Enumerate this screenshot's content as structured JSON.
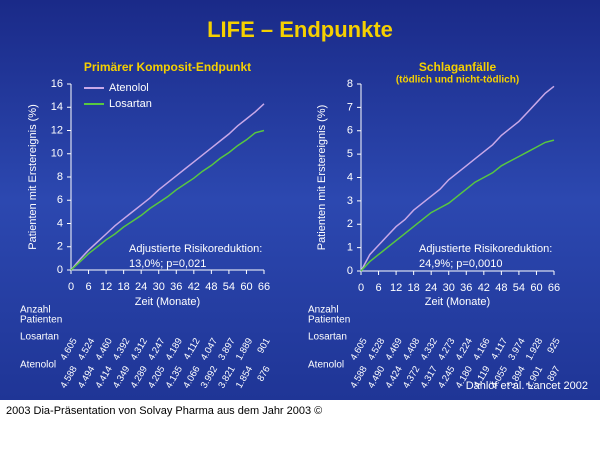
{
  "title": "LIFE – Endpunkte",
  "source": "Dahlöf et al. Lancet 2002",
  "footer": "2003 Dia-Präsentation von Solvay Pharma aus dem Jahr 2003 ©",
  "chart_data": [
    {
      "type": "line",
      "title": "Primärer Komposit-Endpunkt",
      "x_label": "Zeit (Monate)",
      "y_label": "Patienten mit Erstereignis (%)",
      "xlim": [
        0,
        66
      ],
      "xticks": [
        0,
        6,
        12,
        18,
        24,
        30,
        36,
        42,
        48,
        54,
        60,
        66
      ],
      "ylim": [
        0,
        16
      ],
      "yticks": [
        0,
        2,
        4,
        6,
        8,
        10,
        12,
        14,
        16
      ],
      "legend": "upper left",
      "annotation": [
        "Adjustierte Risikoreduktion:",
        "13,0%; p=0,021"
      ],
      "x": [
        0,
        3,
        6,
        9,
        12,
        15,
        18,
        21,
        24,
        27,
        30,
        33,
        36,
        39,
        42,
        45,
        48,
        51,
        54,
        57,
        60,
        63,
        66
      ],
      "series": [
        {
          "name": "Atenolol",
          "color": "#c8a8e8",
          "values": [
            0,
            0.9,
            1.7,
            2.4,
            3.1,
            3.8,
            4.4,
            5.0,
            5.6,
            6.2,
            6.9,
            7.5,
            8.1,
            8.7,
            9.3,
            9.9,
            10.5,
            11.1,
            11.7,
            12.4,
            13.0,
            13.6,
            14.3
          ]
        },
        {
          "name": "Losartan",
          "color": "#58c840",
          "values": [
            0,
            0.7,
            1.4,
            2.0,
            2.6,
            3.1,
            3.7,
            4.2,
            4.7,
            5.3,
            5.8,
            6.3,
            6.9,
            7.4,
            7.9,
            8.5,
            9.0,
            9.6,
            10.1,
            10.7,
            11.2,
            11.8,
            12.0
          ]
        }
      ],
      "at_risk_title": [
        "Anzahl",
        "Patienten"
      ],
      "at_risk": [
        {
          "name": "Losartan",
          "values": [
            "4.605",
            "4.524",
            "4.460",
            "4.392",
            "4.312",
            "4.247",
            "4.189",
            "4.112",
            "4.047",
            "3.897",
            "1.889",
            "901"
          ]
        },
        {
          "name": "Atenolol",
          "values": [
            "4.588",
            "4.494",
            "4.414",
            "4.349",
            "4.289",
            "4.205",
            "4.135",
            "4.066",
            "3.992",
            "3.821",
            "1.854",
            "876"
          ]
        }
      ]
    },
    {
      "type": "line",
      "title": "Schlaganfälle",
      "subtitle": "(tödlich und nicht-tödlich)",
      "x_label": "Zeit (Monate)",
      "y_label": "Patienten mit Erstereignis (%)",
      "xlim": [
        0,
        66
      ],
      "xticks": [
        0,
        6,
        12,
        18,
        24,
        30,
        36,
        42,
        48,
        54,
        60,
        66
      ],
      "ylim": [
        0,
        8
      ],
      "yticks": [
        0,
        1,
        2,
        3,
        4,
        5,
        6,
        7,
        8
      ],
      "annotation": [
        "Adjustierte Risikoreduktion:",
        "24,9%; p=0,0010"
      ],
      "x": [
        0,
        3,
        6,
        9,
        12,
        15,
        18,
        21,
        24,
        27,
        30,
        33,
        36,
        39,
        42,
        45,
        48,
        51,
        54,
        57,
        60,
        63,
        66
      ],
      "series": [
        {
          "color": "#c8a8e8",
          "values": [
            0,
            0.7,
            1.1,
            1.5,
            1.9,
            2.2,
            2.6,
            2.9,
            3.2,
            3.5,
            3.9,
            4.2,
            4.5,
            4.8,
            5.1,
            5.4,
            5.8,
            6.1,
            6.4,
            6.8,
            7.2,
            7.6,
            7.9
          ]
        },
        {
          "color": "#58c840",
          "values": [
            0,
            0.4,
            0.7,
            1.0,
            1.3,
            1.6,
            1.9,
            2.2,
            2.5,
            2.7,
            2.9,
            3.2,
            3.5,
            3.8,
            4.0,
            4.2,
            4.5,
            4.7,
            4.9,
            5.1,
            5.3,
            5.5,
            5.6
          ]
        }
      ],
      "at_risk_title": [
        "Anzahl",
        "Patienten"
      ],
      "at_risk": [
        {
          "name": "Losartan",
          "values": [
            "4.605",
            "4.528",
            "4.469",
            "4.408",
            "4.332",
            "4.273",
            "4.224",
            "4.166",
            "4.117",
            "3.974",
            "1.928",
            "925"
          ]
        },
        {
          "name": "Atenolol",
          "values": [
            "4.588",
            "4.490",
            "4.424",
            "4.372",
            "4.317",
            "4.245",
            "4.180",
            "4.119",
            "4.055",
            "3.894",
            "1.901",
            "897"
          ]
        }
      ]
    }
  ]
}
